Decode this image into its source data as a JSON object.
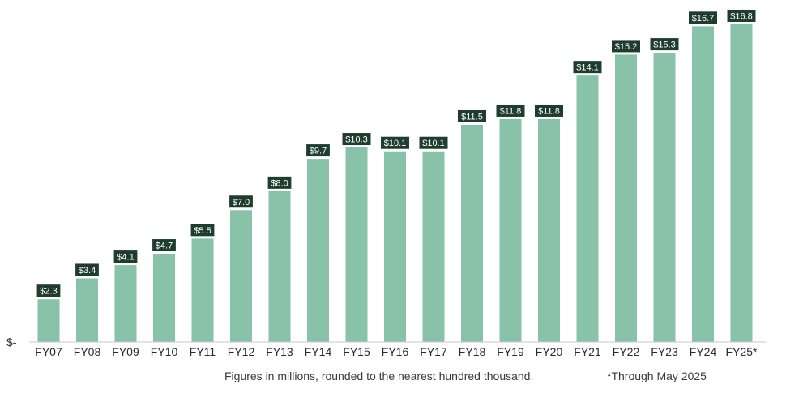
{
  "chart_data": {
    "type": "bar",
    "categories": [
      "FY07",
      "FY08",
      "FY09",
      "FY10",
      "FY11",
      "FY12",
      "FY13",
      "FY14",
      "FY15",
      "FY16",
      "FY17",
      "FY18",
      "FY19",
      "FY20",
      "FY21",
      "FY22",
      "FY23",
      "FY24",
      "FY25*"
    ],
    "values": [
      2.3,
      3.4,
      4.1,
      4.7,
      5.5,
      7.0,
      8.0,
      9.7,
      10.3,
      10.1,
      10.1,
      11.5,
      11.8,
      11.8,
      14.1,
      15.2,
      15.3,
      16.7,
      16.8
    ],
    "data_labels": [
      "$2.3",
      "$3.4",
      "$4.1",
      "$4.7",
      "$5.5",
      "$7.0",
      "$8.0",
      "$9.7",
      "$10.3",
      "$10.1",
      "$10.1",
      "$11.5",
      "$11.8",
      "$11.8",
      "$14.1",
      "$15.2",
      "$15.3",
      "$16.7",
      "$16.8"
    ],
    "ylim": [
      0,
      17.2
    ],
    "y_tick_label": "$-",
    "title": "",
    "xlabel": "",
    "ylabel": "",
    "grid": false,
    "legend": "none",
    "colors": {
      "bar": "#88c2a8",
      "label_bg": "#1f3d2f",
      "label_text": "#ffffff",
      "axis": "#c9c9c9",
      "text": "#2b2b2b"
    }
  },
  "notes": {
    "figures": "Figures in millions, rounded to the nearest hundred thousand.",
    "through": "*Through May 2025"
  }
}
